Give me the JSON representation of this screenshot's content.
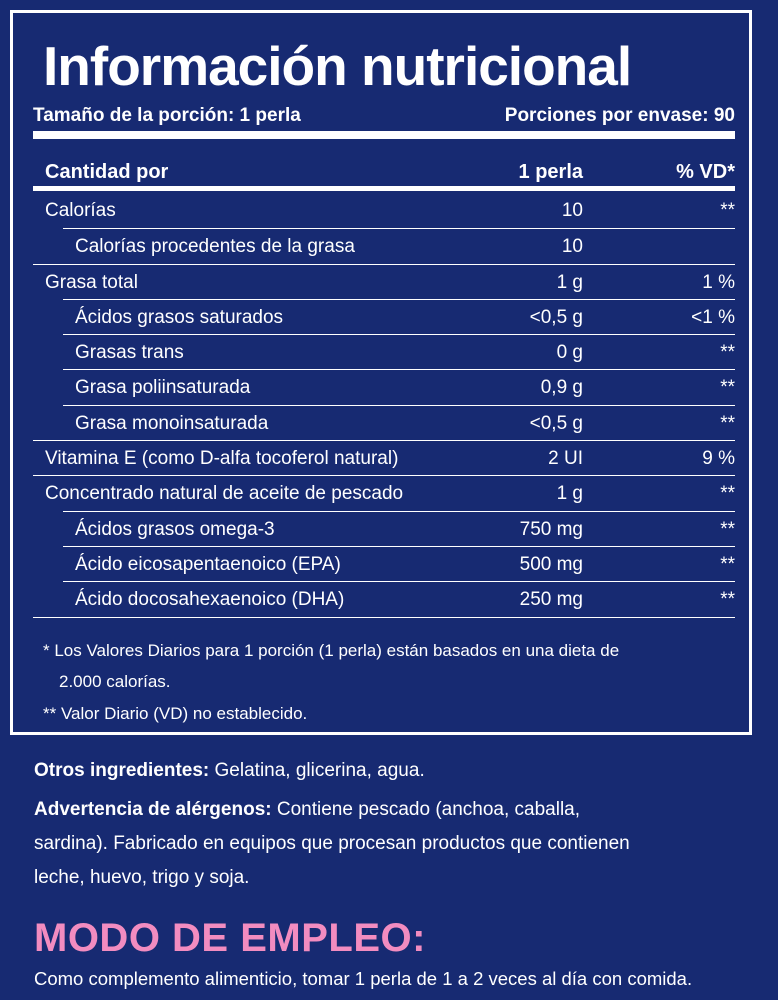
{
  "title": "Información nutricional",
  "serving_size": "Tamaño de la porción: 1 perla",
  "servings_per_container": "Porciones por envase: 90",
  "table": {
    "header": [
      "Cantidad por",
      "1 perla",
      "% VD*"
    ],
    "rows": [
      [
        "Calorías",
        "10",
        "**"
      ],
      [
        "Calorías procedentes de la grasa",
        "10"
      ],
      [
        "Grasa total",
        "1 g",
        "1 %"
      ],
      [
        "Ácidos grasos saturados",
        "<0,5 g",
        "<1 %"
      ],
      [
        "Grasas trans",
        "0 g",
        "**"
      ],
      [
        "Grasa poliinsaturada",
        "0,9 g",
        "**"
      ],
      [
        "Grasa monoinsaturada",
        "<0,5 g",
        "**"
      ],
      [
        "Vitamina E (como D-alfa tocoferol natural)",
        "2 UI",
        "9 %"
      ],
      [
        "Concentrado natural de aceite de pescado",
        "1 g",
        "**"
      ],
      [
        "Ácidos grasos omega-3",
        "750 mg",
        "**"
      ],
      [
        "Ácido eicosapentaenoico (EPA)",
        "500 mg",
        "**"
      ],
      [
        "Ácido docosahexaenoico (DHA)",
        "250 mg",
        "**"
      ]
    ]
  },
  "footnotes": [
    "* Los Valores Diarios para 1 porción (1 perla) están basados en una dieta de 2.000 calorías.",
    "** Valor Diario (VD) no establecido."
  ],
  "other_ingredients": {
    "label": "Otros ingredientes:",
    "text": "Gelatina, glicerina, agua."
  },
  "allergen_warning": {
    "label": "Advertencia de alérgenos:",
    "text": "Contiene pescado (anchoa, caballa, sardina). Fabricado en equipos que procesan productos que contienen leche, huevo, trigo y soja."
  },
  "directions": {
    "heading": "MODO DE EMPLEO:",
    "text": "Como complemento alimenticio, tomar 1 perla de 1 a 2 veces al día con comida."
  }
}
